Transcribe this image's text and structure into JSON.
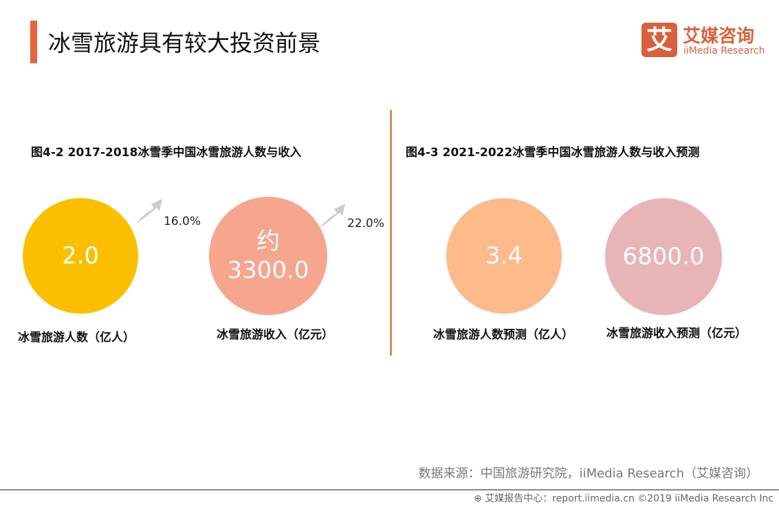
{
  "header": {
    "title": "冰雪旅游具有较大投资前景",
    "accent_color": "#e8643c"
  },
  "logo": {
    "mark": "艾",
    "name_cn": "艾媒咨询",
    "name_en": "iiMedia Research",
    "color": "#d9603b"
  },
  "left": {
    "subtitle": "图4-2 2017-2018冰雪季中国冰雪旅游人数与收入",
    "items": [
      {
        "value": "2.0",
        "label": "冰雪旅游人数（亿人）",
        "growth": "16.0%",
        "color": "#fbbf00"
      },
      {
        "prefix": "约",
        "value": "3300.0",
        "label": "冰雪旅游收入（亿元）",
        "growth": "22.0%",
        "color": "#f6a58e"
      }
    ]
  },
  "right": {
    "subtitle": "图4-3 2021-2022冰雪季中国冰雪旅游人数与收入预测",
    "items": [
      {
        "value": "3.4",
        "label": "冰雪旅游人数预测（亿人）",
        "color": "#fcb98a"
      },
      {
        "value": "6800.0",
        "label": "冰雪旅游收入预测（亿元）",
        "color": "#e8b5b7"
      }
    ]
  },
  "source": "数据来源：中国旅游研究院，iiMedia Research（艾媒咨询）",
  "footer": "艾媒报告中心：report.iimedia.cn  ©2019  iiMedia Research  Inc"
}
